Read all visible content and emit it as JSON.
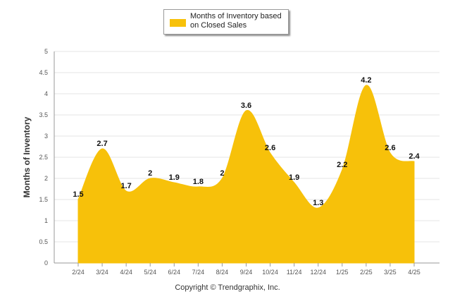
{
  "legend": {
    "label": "Months of Inventory based on Closed Sales"
  },
  "copyright": "Copyright © Trendgraphix, Inc.",
  "colors": {
    "area": "#f7c10a",
    "grid": "#e6e6e6",
    "axis": "#999999"
  },
  "chart_data": {
    "type": "area",
    "title": "",
    "xlabel": "",
    "ylabel": "Months of Inventory",
    "categories": [
      "2/24",
      "3/24",
      "4/24",
      "5/24",
      "6/24",
      "7/24",
      "8/24",
      "9/24",
      "10/24",
      "11/24",
      "12/24",
      "1/25",
      "2/25",
      "3/25",
      "4/25"
    ],
    "series": [
      {
        "name": "Months of Inventory based on Closed Sales",
        "values": [
          1.5,
          2.7,
          1.7,
          2,
          1.9,
          1.8,
          2,
          3.6,
          2.6,
          1.9,
          1.3,
          2.2,
          4.2,
          2.6,
          2.4
        ]
      }
    ],
    "yticks": [
      "0",
      "0.5",
      "1",
      "1.5",
      "2",
      "2.5",
      "3",
      "3.5",
      "4",
      "4.5",
      "5"
    ],
    "ylim": [
      0,
      5
    ],
    "grid": true,
    "legend_position": "top"
  }
}
